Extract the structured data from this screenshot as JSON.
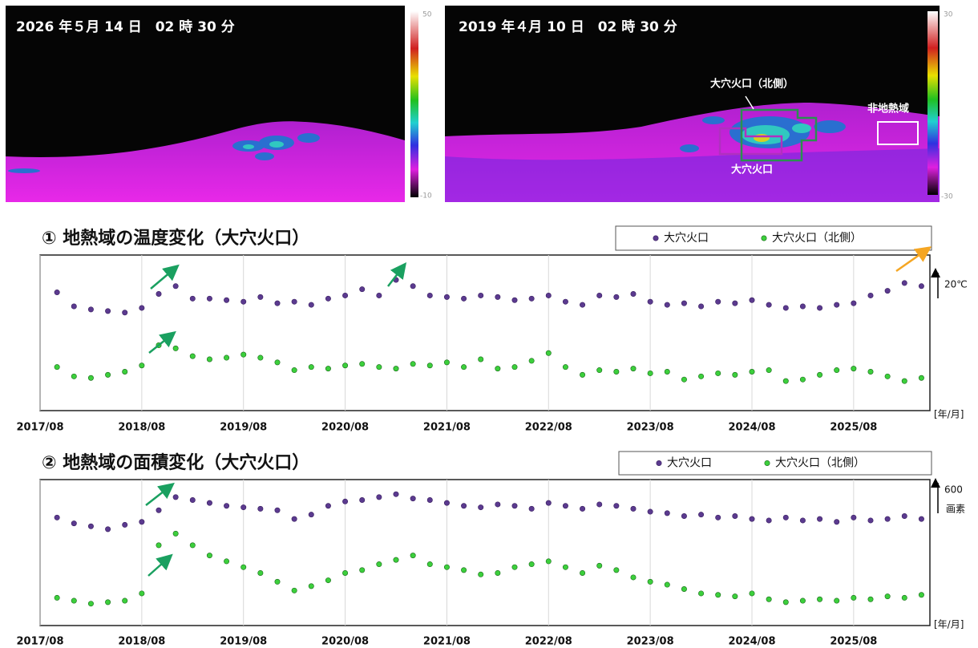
{
  "images": [
    {
      "timestamp": "2026 年５月 14 日　02 時 30 分",
      "scale_max": 50,
      "scale_min": -10
    },
    {
      "timestamp": "2019 年４月 10 日　02 時 30 分",
      "scale_max": 30,
      "scale_min": -30,
      "label_north": "大穴火口（北側）",
      "label_nonthermal": "非地熱域",
      "label_crater": "大穴火口"
    }
  ],
  "chart_data": [
    {
      "type": "scatter",
      "title": "① 地熱域の温度変化（大穴火口）",
      "scale_label": "20℃",
      "x_unit": "[年/月]",
      "xlim": [
        "2017/08",
        "2026/05"
      ],
      "ylim": [
        0,
        100
      ],
      "xticks": [
        "2017/08",
        "2018/08",
        "2019/08",
        "2020/08",
        "2021/08",
        "2022/08",
        "2023/08",
        "2024/08",
        "2025/08"
      ],
      "legend": "upper right",
      "x": [
        "2017/10",
        "2017/12",
        "2018/02",
        "2018/04",
        "2018/06",
        "2018/08",
        "2018/10",
        "2018/12",
        "2019/02",
        "2019/04",
        "2019/06",
        "2019/08",
        "2019/10",
        "2019/12",
        "2020/02",
        "2020/04",
        "2020/06",
        "2020/08",
        "2020/10",
        "2020/12",
        "2021/02",
        "2021/04",
        "2021/06",
        "2021/08",
        "2021/10",
        "2021/12",
        "2022/02",
        "2022/04",
        "2022/06",
        "2022/08",
        "2022/10",
        "2022/12",
        "2023/02",
        "2023/04",
        "2023/06",
        "2023/08",
        "2023/10",
        "2023/12",
        "2024/02",
        "2024/04",
        "2024/06",
        "2024/08",
        "2024/10",
        "2024/12",
        "2025/02",
        "2025/04",
        "2025/06",
        "2025/08",
        "2025/10",
        "2025/12",
        "2026/02",
        "2026/04"
      ],
      "series": [
        {
          "name": "大穴火口",
          "color": "#5b3a8f",
          "values": [
            76,
            67,
            65,
            64,
            63,
            66,
            75,
            80,
            72,
            72,
            71,
            70,
            73,
            69,
            70,
            68,
            72,
            74,
            78,
            74,
            84,
            80,
            74,
            73,
            72,
            74,
            73,
            71,
            72,
            74,
            70,
            68,
            74,
            73,
            75,
            70,
            68,
            69,
            67,
            70,
            69,
            71,
            68,
            66,
            67,
            66,
            68,
            69,
            74,
            77,
            82,
            80
          ]
        },
        {
          "name": "大穴火口（北側）",
          "color": "#3ccf3c",
          "values": [
            28,
            22,
            21,
            23,
            25,
            29,
            42,
            40,
            35,
            33,
            34,
            36,
            34,
            31,
            26,
            28,
            27,
            29,
            30,
            28,
            27,
            30,
            29,
            31,
            28,
            33,
            27,
            28,
            32,
            37,
            28,
            23,
            26,
            25,
            27,
            24,
            25,
            20,
            22,
            24,
            23,
            25,
            26,
            19,
            20,
            23,
            26,
            27,
            25,
            22,
            19,
            21
          ]
        }
      ]
    },
    {
      "type": "scatter",
      "title": "② 地熱域の面積変化（大穴火口）",
      "scale_label": 600,
      "scale_unit": "画素",
      "x_unit": "[年/月]",
      "xlim": [
        "2017/08",
        "2026/05"
      ],
      "ylim": [
        0,
        100
      ],
      "xticks": [
        "2017/08",
        "2018/08",
        "2019/08",
        "2020/08",
        "2021/08",
        "2022/08",
        "2023/08",
        "2024/08",
        "2025/08"
      ],
      "legend": "upper right",
      "x": [
        "2017/10",
        "2017/12",
        "2018/02",
        "2018/04",
        "2018/06",
        "2018/08",
        "2018/10",
        "2018/12",
        "2019/02",
        "2019/04",
        "2019/06",
        "2019/08",
        "2019/10",
        "2019/12",
        "2020/02",
        "2020/04",
        "2020/06",
        "2020/08",
        "2020/10",
        "2020/12",
        "2021/02",
        "2021/04",
        "2021/06",
        "2021/08",
        "2021/10",
        "2021/12",
        "2022/02",
        "2022/04",
        "2022/06",
        "2022/08",
        "2022/10",
        "2022/12",
        "2023/02",
        "2023/04",
        "2023/06",
        "2023/08",
        "2023/10",
        "2023/12",
        "2024/02",
        "2024/04",
        "2024/06",
        "2024/08",
        "2024/10",
        "2024/12",
        "2025/02",
        "2025/04",
        "2025/06",
        "2025/08",
        "2025/10",
        "2025/12",
        "2026/02",
        "2026/04"
      ],
      "series": [
        {
          "name": "大穴火口",
          "color": "#5b3a8f",
          "values": [
            74,
            70,
            68,
            66,
            69,
            71,
            79,
            88,
            86,
            84,
            82,
            81,
            80,
            79,
            73,
            76,
            82,
            85,
            86,
            88,
            90,
            87,
            86,
            84,
            82,
            81,
            83,
            82,
            80,
            84,
            82,
            80,
            83,
            82,
            80,
            78,
            77,
            75,
            76,
            74,
            75,
            73,
            72,
            74,
            72,
            73,
            71,
            74,
            72,
            73,
            75,
            73
          ]
        },
        {
          "name": "大穴火口（北側）",
          "color": "#3ccf3c",
          "values": [
            19,
            17,
            15,
            16,
            17,
            22,
            55,
            63,
            55,
            48,
            44,
            40,
            36,
            30,
            24,
            27,
            31,
            36,
            38,
            42,
            45,
            48,
            42,
            40,
            38,
            35,
            36,
            40,
            42,
            44,
            40,
            36,
            41,
            38,
            33,
            30,
            28,
            25,
            22,
            21,
            20,
            22,
            18,
            16,
            17,
            18,
            17,
            19,
            18,
            20,
            19,
            21
          ]
        }
      ]
    }
  ]
}
